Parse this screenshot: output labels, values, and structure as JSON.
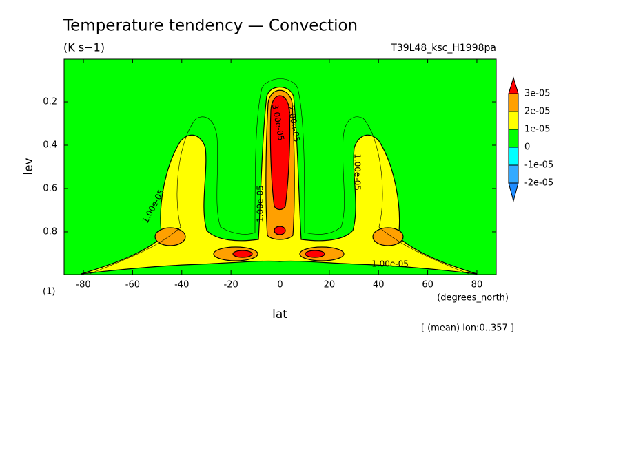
{
  "chart_data": {
    "type": "contour",
    "title": "Temperature tendency — Convection",
    "subtitle": "(K s−1)",
    "run_label": "T39L48_ksc_H1998pa",
    "x_label": "lat",
    "x_unit": "(degrees_north)",
    "y_label": "lev",
    "y_unit": "(1)",
    "note": "[ (mean) lon:0..357 ]",
    "xlim": [
      -87.86,
      87.86
    ],
    "xticks": [
      -80,
      -60,
      -40,
      -20,
      0,
      20,
      40,
      60,
      80
    ],
    "ylim": [
      0.997,
      0.003
    ],
    "yticks": [
      0.2,
      0.4,
      0.6,
      0.8
    ],
    "levels": [
      {
        "value": -2e-05,
        "label": "-2e-05"
      },
      {
        "value": -1e-05,
        "label": "-1e-05"
      },
      0,
      {
        "value": 1e-05,
        "label": "1e-05"
      },
      {
        "value": 2e-05,
        "label": "2e-05"
      },
      {
        "value": 3e-05,
        "label": "3e-05"
      }
    ],
    "colors": [
      "#1e8cff",
      "#33aaff",
      "#00ffff",
      "#00ff00",
      "#ffff00",
      "#ffa000",
      "#ff0000"
    ],
    "contour_labels": [
      {
        "value": 1e-05,
        "label": "1.00e-05"
      },
      {
        "value": 1e-05,
        "label": "1.00e-05"
      },
      {
        "value": 3e-05,
        "label": "3.00e-05"
      },
      {
        "value": 2e-05,
        "label": "2.00e-05"
      },
      {
        "value": 1e-05,
        "label": "1.00e-05"
      },
      {
        "value": 1e-05,
        "label": "1.00e-05"
      }
    ]
  }
}
